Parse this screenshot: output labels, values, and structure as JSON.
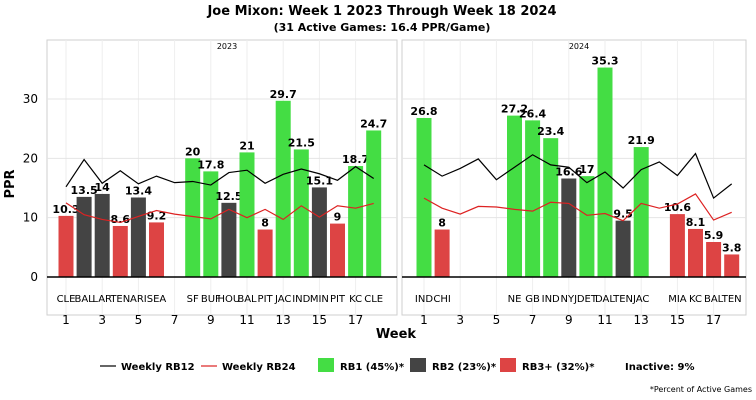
{
  "chart_data": {
    "type": "bar",
    "title": "Joe Mixon: Week 1 2023 Through Week 18 2024",
    "subtitle": "(31 Active Games: 16.4 PPR/Game)",
    "ylabel": "PPR",
    "xlabel": "Week",
    "ylim": [
      0,
      37
    ],
    "yticks": [
      0,
      10,
      20,
      30
    ],
    "xticks": [
      1,
      3,
      5,
      7,
      9,
      11,
      13,
      15,
      17
    ],
    "grid": true,
    "legend_position": "bottom",
    "colors": {
      "rb1": "#44dd44",
      "rb2": "#444444",
      "rb3": "#dd4444",
      "rb12_line": "#000000",
      "rb24_line": "#dd2222"
    },
    "legend": {
      "rb12": "Weekly RB12",
      "rb24": "Weekly RB24",
      "rb1": "RB1 (45%)*",
      "rb2": "RB2 (23%)*",
      "rb3": "RB3+ (32%)*",
      "inactive": "Inactive: 9%",
      "footnote": "*Percent of Active Games"
    },
    "panels": [
      {
        "year": "2023",
        "games": [
          {
            "week": 1,
            "opp": "CLE",
            "value": 10.3,
            "tier": "rb3"
          },
          {
            "week": 2,
            "opp": "BAL",
            "value": 13.5,
            "tier": "rb2"
          },
          {
            "week": 3,
            "opp": "LAR",
            "value": 14,
            "tier": "rb2"
          },
          {
            "week": 4,
            "opp": "TEN",
            "value": 8.6,
            "tier": "rb3"
          },
          {
            "week": 5,
            "opp": "ARI",
            "value": 13.4,
            "tier": "rb2"
          },
          {
            "week": 6,
            "opp": "SEA",
            "value": 9.2,
            "tier": "rb3"
          },
          {
            "week": 8,
            "opp": "SF",
            "value": 20,
            "tier": "rb1"
          },
          {
            "week": 9,
            "opp": "BUF",
            "value": 17.8,
            "tier": "rb1"
          },
          {
            "week": 10,
            "opp": "HOU",
            "value": 12.5,
            "tier": "rb2"
          },
          {
            "week": 11,
            "opp": "BAL",
            "value": 21,
            "tier": "rb1"
          },
          {
            "week": 12,
            "opp": "PIT",
            "value": 8,
            "tier": "rb3"
          },
          {
            "week": 13,
            "opp": "JAC",
            "value": 29.7,
            "tier": "rb1"
          },
          {
            "week": 14,
            "opp": "IND",
            "value": 21.5,
            "tier": "rb1"
          },
          {
            "week": 15,
            "opp": "MIN",
            "value": 15.1,
            "tier": "rb2"
          },
          {
            "week": 16,
            "opp": "PIT",
            "value": 9,
            "tier": "rb3"
          },
          {
            "week": 17,
            "opp": "KC",
            "value": 18.7,
            "tier": "rb1"
          },
          {
            "week": 18,
            "opp": "CLE",
            "value": 24.7,
            "tier": "rb1"
          }
        ],
        "rb12": [
          [
            1,
            15.2
          ],
          [
            2,
            19.8
          ],
          [
            3,
            15.8
          ],
          [
            4,
            17.9
          ],
          [
            5,
            15.7
          ],
          [
            6,
            17.0
          ],
          [
            7,
            15.9
          ],
          [
            8,
            16.1
          ],
          [
            9,
            15.5
          ],
          [
            10,
            17.6
          ],
          [
            11,
            18.0
          ],
          [
            12,
            15.8
          ],
          [
            13,
            17.3
          ],
          [
            14,
            18.2
          ],
          [
            15,
            17.4
          ],
          [
            16,
            16.3
          ],
          [
            17,
            18.6
          ],
          [
            18,
            16.6
          ]
        ],
        "rb24": [
          [
            1,
            12.5
          ],
          [
            2,
            10.5
          ],
          [
            3,
            9.7
          ],
          [
            4,
            9.2
          ],
          [
            5,
            10.2
          ],
          [
            6,
            11.2
          ],
          [
            7,
            10.6
          ],
          [
            8,
            10.2
          ],
          [
            9,
            9.8
          ],
          [
            10,
            11.4
          ],
          [
            11,
            10.0
          ],
          [
            12,
            11.4
          ],
          [
            13,
            9.7
          ],
          [
            14,
            12.0
          ],
          [
            15,
            10.1
          ],
          [
            16,
            12.0
          ],
          [
            17,
            11.6
          ],
          [
            18,
            12.4
          ]
        ]
      },
      {
        "year": "2024",
        "games": [
          {
            "week": 1,
            "opp": "IND",
            "value": 26.8,
            "tier": "rb1"
          },
          {
            "week": 2,
            "opp": "CHI",
            "value": 8,
            "tier": "rb3"
          },
          {
            "week": 6,
            "opp": "NE",
            "value": 27.2,
            "tier": "rb1"
          },
          {
            "week": 7,
            "opp": "GB",
            "value": 26.4,
            "tier": "rb1"
          },
          {
            "week": 8,
            "opp": "IND",
            "value": 23.4,
            "tier": "rb1"
          },
          {
            "week": 9,
            "opp": "NYJ",
            "value": 16.6,
            "tier": "rb2"
          },
          {
            "week": 10,
            "opp": "DET",
            "value": 17,
            "tier": "rb1"
          },
          {
            "week": 11,
            "opp": "DAL",
            "value": 35.3,
            "tier": "rb1"
          },
          {
            "week": 12,
            "opp": "TEN",
            "value": 9.5,
            "tier": "rb2"
          },
          {
            "week": 13,
            "opp": "JAC",
            "value": 21.9,
            "tier": "rb1"
          },
          {
            "week": 15,
            "opp": "MIA",
            "value": 10.6,
            "tier": "rb3"
          },
          {
            "week": 16,
            "opp": "KC",
            "value": 8.1,
            "tier": "rb3"
          },
          {
            "week": 17,
            "opp": "BAL",
            "value": 5.9,
            "tier": "rb3"
          },
          {
            "week": 18,
            "opp": "TEN",
            "value": 3.8,
            "tier": "rb3"
          }
        ],
        "rb12": [
          [
            1,
            18.9
          ],
          [
            2,
            17.0
          ],
          [
            3,
            18.3
          ],
          [
            4,
            19.9
          ],
          [
            5,
            16.4
          ],
          [
            6,
            18.5
          ],
          [
            7,
            20.6
          ],
          [
            8,
            18.9
          ],
          [
            9,
            18.5
          ],
          [
            10,
            15.9
          ],
          [
            11,
            17.7
          ],
          [
            12,
            15.0
          ],
          [
            13,
            18.1
          ],
          [
            14,
            19.4
          ],
          [
            15,
            17.1
          ],
          [
            16,
            20.8
          ],
          [
            17,
            13.3
          ],
          [
            18,
            15.7
          ]
        ],
        "rb24": [
          [
            1,
            13.3
          ],
          [
            2,
            11.6
          ],
          [
            3,
            10.6
          ],
          [
            4,
            11.9
          ],
          [
            5,
            11.8
          ],
          [
            6,
            11.4
          ],
          [
            7,
            11.1
          ],
          [
            8,
            12.6
          ],
          [
            9,
            12.4
          ],
          [
            10,
            10.4
          ],
          [
            11,
            10.7
          ],
          [
            12,
            9.5
          ],
          [
            13,
            12.4
          ],
          [
            14,
            11.6
          ],
          [
            15,
            12.3
          ],
          [
            16,
            14.0
          ],
          [
            17,
            9.6
          ],
          [
            18,
            10.9
          ]
        ]
      }
    ]
  }
}
